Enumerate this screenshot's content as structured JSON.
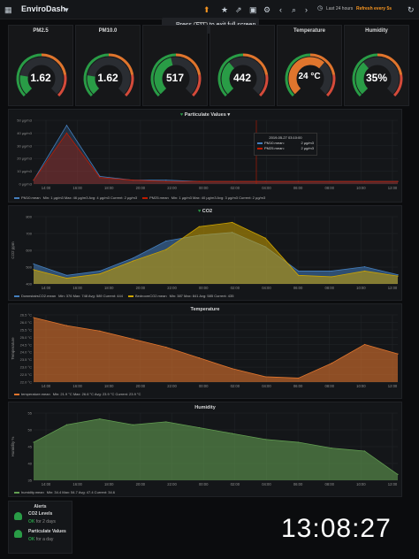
{
  "topbar": {
    "title": "EnviroDash",
    "time_range": "Last 24 hours",
    "refresh": "Refresh every 5s"
  },
  "overlay": {
    "pre": "Press",
    "key": "F11",
    "post": "to exit full screen"
  },
  "gauges": [
    {
      "title": "PM2.5",
      "value": "1.62",
      "level": 0.2,
      "color": "#299c46"
    },
    {
      "title": "PM10.0",
      "value": "1.62",
      "level": 0.2,
      "color": "#299c46"
    },
    {
      "title": "",
      "value": "517",
      "level": 0.45,
      "color": "#299c46"
    },
    {
      "title": "",
      "value": "442",
      "level": 0.35,
      "color": "#299c46"
    },
    {
      "title": "Temperature",
      "value": "24 °C",
      "level": 0.65,
      "color": "#e0752d"
    },
    {
      "title": "Humidity",
      "value": "35%",
      "level": 0.35,
      "color": "#299c46"
    }
  ],
  "panels": {
    "particulate": {
      "title": "Particulate Values",
      "legend": [
        {
          "name": "PM10.mean",
          "stats": "Min: 1 µg/m3  Max: 46 µg/m3  Avg: 4 µg/m3  Current: 2 µg/m3",
          "color": "#447ebc"
        },
        {
          "name": "PM25.mean",
          "stats": "Min: 1 µg/m3  Max: 40 µg/m3  Avg: 3 µg/m3  Current: 2 µg/m3",
          "color": "#bf1b00"
        }
      ]
    },
    "co2": {
      "title": "CO2",
      "legend": [
        {
          "name": "DownstairsCO2.mean",
          "stats": "Min: 376  Max: 748  Avg: 589  Current: 444",
          "color": "#447ebc"
        },
        {
          "name": "BedroomCO2.mean",
          "stats": "Min: 387  Max: 841  Avg: 585  Current: 435",
          "color": "#cca300"
        }
      ]
    },
    "temperature": {
      "title": "Temperature",
      "legend": [
        {
          "name": "temperature.mean",
          "stats": "Min: 21.9 °C  Max: 26.6 °C  Avg: 23.9 °C  Current: 23.9 °C",
          "color": "#e0752d"
        }
      ]
    },
    "humidity": {
      "title": "Humidity",
      "legend": [
        {
          "name": "humidity.mean",
          "stats": "Min: 34.4  Max: 54.7  Avg: 47.4  Current: 34.6",
          "color": "#629e51"
        }
      ]
    }
  },
  "tooltip": {
    "time": "2019-05-27 03:10:00",
    "rows": [
      {
        "name": "PM10.mean:",
        "val": "2 µg/m3"
      },
      {
        "name": "PM25.mean:",
        "val": "2 µg/m3"
      }
    ]
  },
  "alerts": {
    "title": "Alerts",
    "items": [
      {
        "label": "CO2 Levels",
        "state": "OK",
        "since": "for 2 days"
      },
      {
        "label": "Particulate Values",
        "state": "OK",
        "since": "for a day"
      }
    ]
  },
  "clock": "13:08:27",
  "chart_data": [
    {
      "type": "area",
      "title": "Particulate Values",
      "x": [
        "14:00",
        "16:00",
        "18:00",
        "20:00",
        "22:00",
        "00:00",
        "02:00",
        "04:00",
        "06:00",
        "08:00",
        "10:00",
        "12:00"
      ],
      "yticks": [
        "0 µg/m3",
        "10 µg/m3",
        "20 µg/m3",
        "30 µg/m3",
        "40 µg/m3",
        "50 µg/m3"
      ],
      "ylim": [
        0,
        50
      ],
      "series": [
        {
          "name": "PM10.mean",
          "values": [
            3,
            46,
            6,
            3,
            3,
            2,
            2,
            2,
            2,
            2,
            2,
            2
          ]
        },
        {
          "name": "PM25.mean",
          "values": [
            3,
            40,
            5,
            3,
            2,
            2,
            2,
            2,
            2,
            2,
            2,
            2
          ]
        }
      ]
    },
    {
      "type": "area",
      "title": "CO2",
      "ylabel": "CO2 ppm",
      "x": [
        "14:00",
        "16:00",
        "18:00",
        "20:00",
        "22:00",
        "00:00",
        "02:00",
        "04:00",
        "06:00",
        "08:00",
        "10:00",
        "12:00"
      ],
      "yticks": [
        "400",
        "500",
        "600",
        "700",
        "800"
      ],
      "ylim": [
        380,
        850
      ],
      "series": [
        {
          "name": "DownstairsCO2.mean",
          "values": [
            520,
            440,
            470,
            560,
            680,
            720,
            740,
            640,
            470,
            470,
            500,
            444
          ]
        },
        {
          "name": "BedroomCO2.mean",
          "values": [
            480,
            420,
            450,
            540,
            620,
            780,
            810,
            700,
            440,
            430,
            470,
            435
          ]
        }
      ]
    },
    {
      "type": "area",
      "title": "Temperature",
      "ylabel": "Temperature",
      "x": [
        "14:00",
        "16:00",
        "18:00",
        "20:00",
        "22:00",
        "00:00",
        "02:00",
        "04:00",
        "06:00",
        "08:00",
        "10:00",
        "12:00"
      ],
      "yticks": [
        "22.0 °C",
        "22.5 °C",
        "23.0 °C",
        "23.5 °C",
        "24.0 °C",
        "24.5 °C",
        "25.0 °C",
        "25.5 °C",
        "26.0 °C",
        "26.5 °C"
      ],
      "ylim": [
        21.8,
        26.8
      ],
      "series": [
        {
          "name": "temperature.mean",
          "values": [
            26.6,
            26.0,
            25.6,
            25.0,
            24.4,
            23.6,
            22.8,
            22.2,
            22.1,
            23.2,
            24.6,
            23.9
          ]
        }
      ]
    },
    {
      "type": "area",
      "title": "Humidity",
      "ylabel": "Humidity %",
      "x": [
        "14:00",
        "16:00",
        "18:00",
        "20:00",
        "22:00",
        "00:00",
        "02:00",
        "04:00",
        "06:00",
        "08:00",
        "10:00",
        "12:00"
      ],
      "yticks": [
        "35",
        "40",
        "45",
        "50",
        "55"
      ],
      "ylim": [
        33,
        56
      ],
      "series": [
        {
          "name": "humidity.mean",
          "values": [
            46,
            52,
            54,
            52,
            53,
            51,
            49,
            47,
            46,
            44,
            43,
            35
          ]
        }
      ]
    }
  ]
}
